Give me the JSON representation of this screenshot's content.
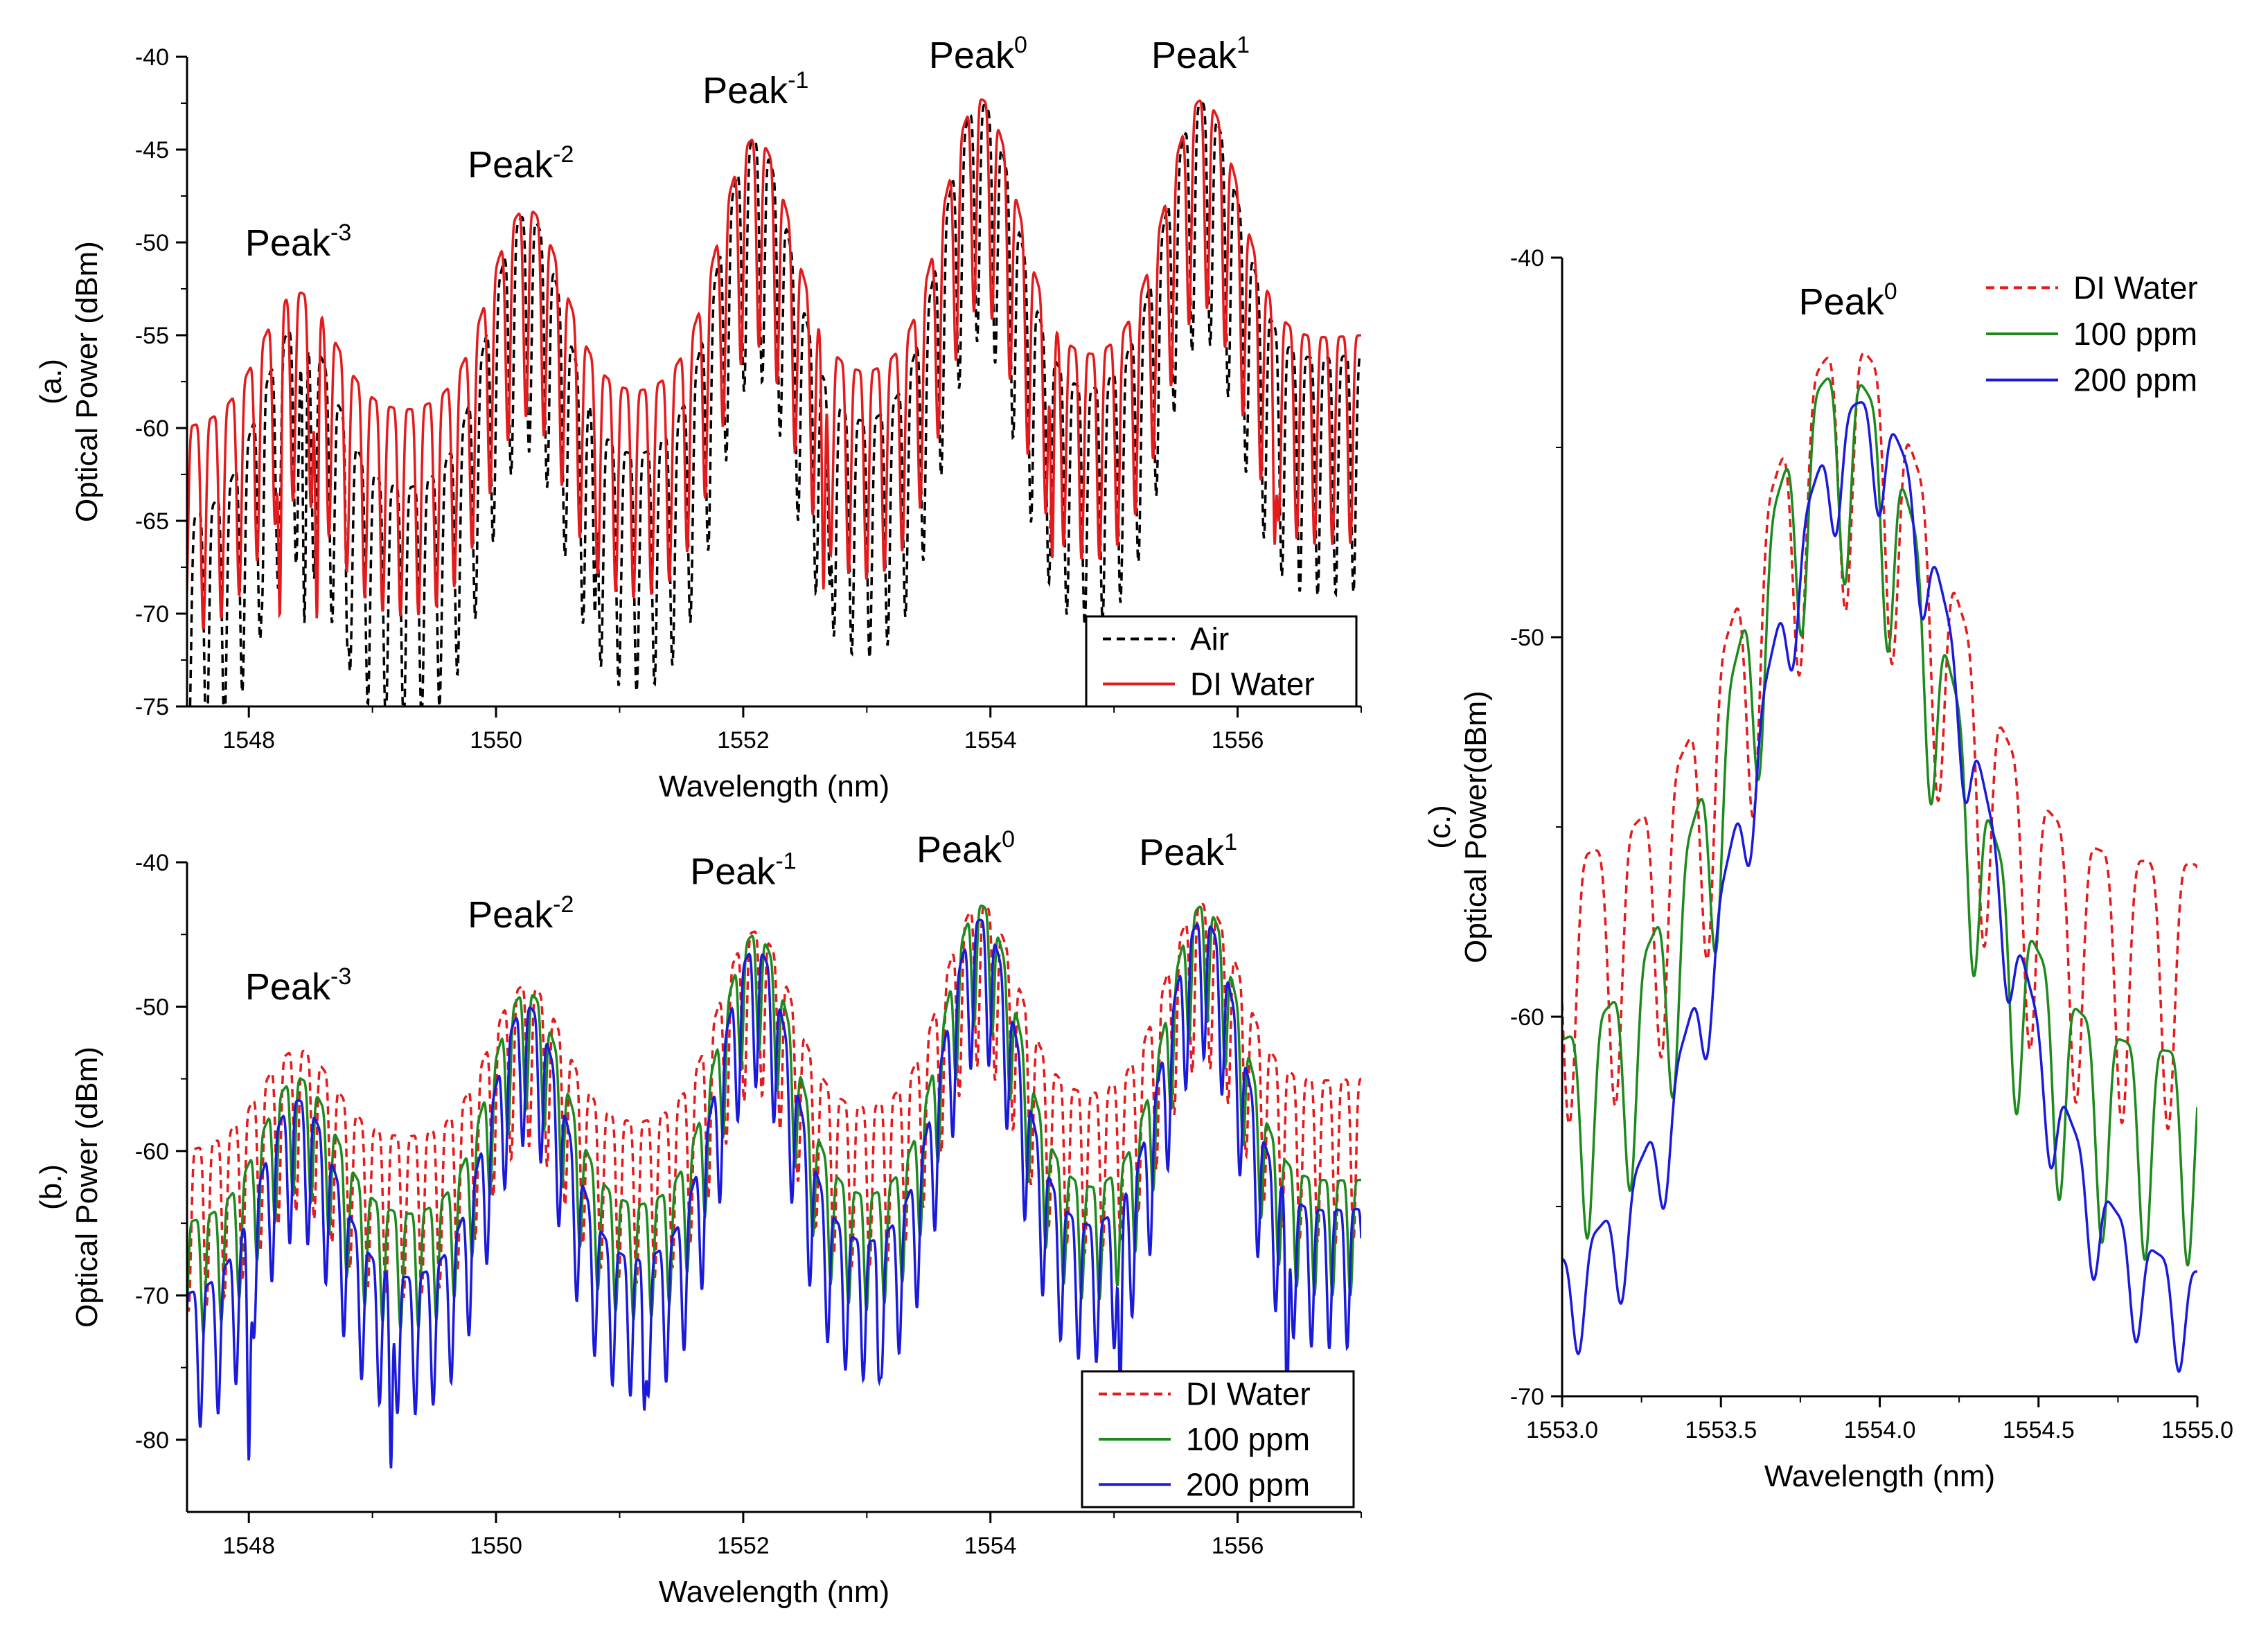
{
  "chart_data": [
    {
      "id": "a",
      "type": "line",
      "panel_label": "(a.)",
      "xlabel": "Wavelength (nm)",
      "ylabel": "Optical Power (dBm)",
      "xlim": [
        1547.5,
        1557.0
      ],
      "ylim": [
        -75,
        -40
      ],
      "xticks": [
        1548,
        1550,
        1552,
        1554,
        1556
      ],
      "yticks": [
        -75,
        -70,
        -65,
        -60,
        -55,
        -50,
        -45,
        -40
      ],
      "legend_position": "bottom-right",
      "peaks": [
        {
          "name": "Peak",
          "sup": "-3",
          "x": 1548.4,
          "y": -50.7
        },
        {
          "name": "Peak",
          "sup": "-2",
          "x": 1550.2,
          "y": -46.5
        },
        {
          "name": "Peak",
          "sup": "-1",
          "x": 1552.1,
          "y": -42.5
        },
        {
          "name": "Peak",
          "sup": "0",
          "x": 1553.9,
          "y": -40.6
        },
        {
          "name": "Peak",
          "sup": "1",
          "x": 1555.7,
          "y": -40.6
        }
      ],
      "series": [
        {
          "name": "Air",
          "color": "#000000",
          "style": "dash",
          "offset": 0,
          "mod_amp": 8,
          "fringe_period": 0.145,
          "baseline": -65,
          "baseline_end": -56,
          "envelope_peaks": [
            -54.5,
            -48.5,
            -44.5,
            -42.5,
            -42.5
          ],
          "deep_nulls": [
            [
              1548.1,
              -70
            ],
            [
              1548.45,
              -70.5
            ],
            [
              1548.8,
              -72
            ],
            [
              1550.8,
              -70
            ],
            [
              1552.7,
              -68.5
            ]
          ]
        },
        {
          "name": "DI Water",
          "color": "#e41a1c",
          "style": "solid",
          "offset": 0,
          "mod_amp": 7,
          "fringe_period": 0.145,
          "baseline": -60,
          "baseline_end": -55,
          "envelope_peaks": [
            -52.7,
            -48.2,
            -44.4,
            -42.3,
            -42.3
          ],
          "deep_nulls": [
            [
              1548.25,
              -70.2
            ],
            [
              1548.55,
              -70.3
            ],
            [
              1552.65,
              -68.7
            ],
            [
              1554.5,
              -67.1
            ],
            [
              1556.3,
              -66.3
            ]
          ]
        }
      ]
    },
    {
      "id": "b",
      "type": "line",
      "panel_label": "(b.)",
      "xlabel": "Wavelength (nm)",
      "ylabel": "Optical Power (dBm)",
      "xlim": [
        1547.5,
        1557.0
      ],
      "ylim": [
        -85,
        -40
      ],
      "xticks": [
        1548,
        1550,
        1552,
        1554,
        1556
      ],
      "yticks": [
        -80,
        -70,
        -60,
        -50,
        -40
      ],
      "legend_position": "bottom-right",
      "peaks": [
        {
          "name": "Peak",
          "sup": "-3",
          "x": 1548.4,
          "y": -49.5
        },
        {
          "name": "Peak",
          "sup": "-2",
          "x": 1550.2,
          "y": -44.5
        },
        {
          "name": "Peak",
          "sup": "-1",
          "x": 1552.0,
          "y": -41.5
        },
        {
          "name": "Peak",
          "sup": "0",
          "x": 1553.8,
          "y": -40.0
        },
        {
          "name": "Peak",
          "sup": "1",
          "x": 1555.6,
          "y": -40.2
        }
      ],
      "series": [
        {
          "name": "DI Water",
          "color": "#e41a1c",
          "style": "dash",
          "baseline": -60,
          "baseline_end": -55,
          "envelope_peaks": [
            -53,
            -48.5,
            -44.8,
            -42.9,
            -42.9
          ],
          "mod_amp": 7
        },
        {
          "name": "100 ppm",
          "color": "#1e8a1e",
          "style": "solid",
          "baseline": -65,
          "baseline_end": -62,
          "envelope_peaks": [
            -55,
            -49,
            -45,
            -43,
            -43
          ],
          "mod_amp": 5
        },
        {
          "name": "200 ppm",
          "color": "#1a1adb",
          "style": "solid",
          "baseline": -70,
          "baseline_end": -64,
          "envelope_peaks": [
            -56.5,
            -50,
            -46,
            -44,
            -44
          ],
          "mod_amp": 6,
          "deep_nulls": [
            [
              1548.0,
              -81.5
            ],
            [
              1549.15,
              -82
            ],
            [
              1551.2,
              -78
            ],
            [
              1553.1,
              -76
            ],
            [
              1555.05,
              -77
            ],
            [
              1556.4,
              -78
            ]
          ]
        }
      ]
    },
    {
      "id": "c",
      "type": "line",
      "panel_label": "(c.)",
      "xlabel": "Wavelength (nm)",
      "ylabel": "Optical Power(dBm)",
      "xlim": [
        1553.0,
        1555.0
      ],
      "ylim": [
        -70,
        -40
      ],
      "xticks": [
        1553.0,
        1553.5,
        1554.0,
        1554.5,
        1555.0
      ],
      "xtick_labels": [
        "1553.0",
        "1553.5",
        "1554.0",
        "1554.5",
        "1555.0"
      ],
      "yticks": [
        -70,
        -60,
        -50,
        -40
      ],
      "legend_position": "top-right",
      "peaks": [
        {
          "name": "Peak",
          "sup": "0",
          "x": 1553.9,
          "y": -41.5
        }
      ],
      "series": [
        {
          "name": "DI Water",
          "color": "#e41a1c",
          "style": "dash",
          "center": 1553.9,
          "peak": -42.3,
          "floor": -56,
          "width": 0.42,
          "mod_amp": 5,
          "fringe_period": 0.145
        },
        {
          "name": "100 ppm",
          "color": "#1e8a1e",
          "style": "solid",
          "center": 1553.88,
          "peak": -43.0,
          "floor": -61,
          "width": 0.45,
          "mod_amp": 4,
          "fringe_period": 0.135
        },
        {
          "name": "200 ppm",
          "color": "#1a1adb",
          "style": "solid",
          "center": 1553.95,
          "peak": -43.8,
          "floor": -67,
          "width": 0.5,
          "mod_amp": 2,
          "fringe_period": 0.135
        }
      ]
    }
  ]
}
